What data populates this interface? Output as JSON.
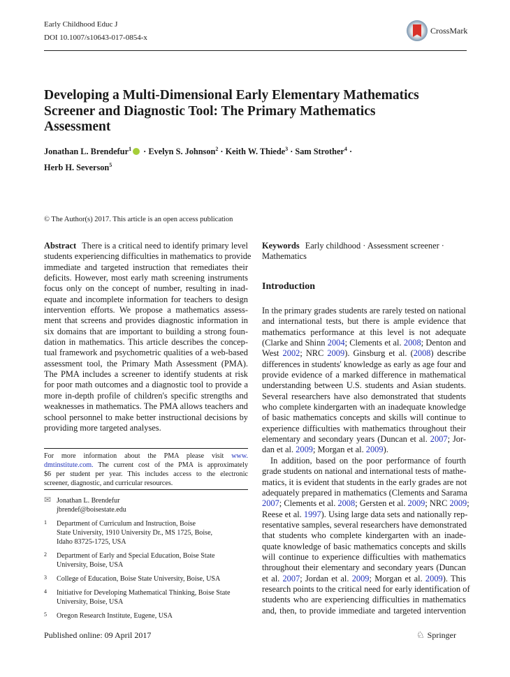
{
  "header": {
    "journal": "Early Childhood Educ J",
    "doi": "DOI 10.1007/s10643-017-0854-x",
    "crossmark": "CrossMark"
  },
  "title_lines": [
    "Developing a Multi-Dimensional Early Elementary Mathematics",
    "Screener and Diagnostic Tool: The Primary Mathematics",
    "Assessment"
  ],
  "authors": [
    {
      "name": "Jonathan L. Brendefur",
      "sup": "1"
    },
    {
      "name": "Evelyn S. Johnson",
      "sup": "2"
    },
    {
      "name": "Keith W. Thiede",
      "sup": "3"
    },
    {
      "name": "Sam Strother",
      "sup": "4"
    },
    {
      "name": "Herb H. Severson",
      "sup": "5"
    }
  ],
  "copyright": "© The Author(s) 2017. This article is an open access publication",
  "abstract": {
    "label": "Abstract",
    "lines": [
      "There is a critical need to identify primary level",
      "students experiencing difficulties in mathematics to provide",
      "immediate and targeted instruction that remediates their",
      "deficits. However, most early math screening instruments",
      "focus only on the concept of number, resulting in inad-",
      "equate and incomplete information for teachers to design",
      "intervention efforts. We propose a mathematics assess-",
      "ment that screens and provides diagnostic information in",
      "six domains that are important to building a strong foun-",
      "dation in mathematics. This article describes the concep-",
      "tual framework and psychometric qualities of a web-based",
      "assessment tool, the Primary Math Assessment (PMA).",
      "The PMA includes a screener to identify students at risk",
      "for poor math outcomes and a diagnostic tool to provide a",
      "more in-depth profile of children's specific strengths and",
      "weaknesses in mathematics. The PMA allows teachers and",
      "school personnel to make better instructional decisions by",
      "providing more targeted analyses."
    ]
  },
  "footnote": {
    "lines": [
      [
        "For more information about the PMA please visit ",
        {
          "link": "www."
        }
      ],
      [
        {
          "link": "dmtinstitute.com."
        },
        " The current cost of the PMA is approximately"
      ],
      [
        "$6 per student per year. This includes access to the electronic"
      ],
      [
        "screener, diagnostic, and curricular resources."
      ]
    ]
  },
  "correspondence": {
    "name": "Jonathan L. Brendefur",
    "email": "jbrendef@boisestate.edu"
  },
  "affiliations": [
    {
      "num": "1",
      "lines": [
        "Department of Curriculum and Instruction, Boise",
        "State University, 1910 University Dr., MS 1725, Boise,",
        "Idaho 83725-1725, USA"
      ]
    },
    {
      "num": "2",
      "lines": [
        "Department of Early and Special Education, Boise State",
        "University, Boise, USA"
      ]
    },
    {
      "num": "3",
      "lines": [
        "College of Education, Boise State University, Boise, USA"
      ]
    },
    {
      "num": "4",
      "lines": [
        "Initiative for Developing Mathematical Thinking, Boise State",
        "University, Boise, USA"
      ]
    },
    {
      "num": "5",
      "lines": [
        "Oregon Research Institute, Eugene, USA"
      ]
    }
  ],
  "published": "Published online: 09 April 2017",
  "keywords": {
    "label": "Keywords",
    "lines": [
      "Early childhood · Assessment screener ·",
      "Mathematics"
    ]
  },
  "introduction": {
    "heading": "Introduction",
    "lines": [
      [
        "In the primary grades students are rarely tested on national"
      ],
      [
        "and international tests, but there is ample evidence that"
      ],
      [
        "mathematics performance at this level is not adequate"
      ],
      [
        "(Clarke and Shinn ",
        {
          "link": "2004"
        },
        "; Clements et al. ",
        {
          "link": "2008"
        },
        "; Denton and"
      ],
      [
        "West ",
        {
          "link": "2002"
        },
        "; NRC ",
        {
          "link": "2009"
        },
        "). Ginsburg et al. (",
        {
          "link": "2008"
        },
        ") describe"
      ],
      [
        "differences in students' knowledge as early as age four and"
      ],
      [
        "provide evidence of a marked difference in mathematical"
      ],
      [
        "understanding between U.S. students and Asian students."
      ],
      [
        "Several researchers have also demonstrated that students"
      ],
      [
        "who complete kindergarten with an inadequate knowledge"
      ],
      [
        "of basic mathematics concepts and skills will continue to"
      ],
      [
        "experience difficulties with mathematics throughout their"
      ],
      [
        "elementary and secondary years (Duncan et al. ",
        {
          "link": "2007"
        },
        "; Jor-"
      ],
      [
        "dan et al. ",
        {
          "link": "2009"
        },
        "; Morgan et al. ",
        {
          "link": "2009"
        },
        ")."
      ],
      [
        "In addition, based on the poor performance of fourth"
      ],
      [
        "grade students on national and international tests of mathe-"
      ],
      [
        "matics, it is evident that students in the early grades are not"
      ],
      [
        "adequately prepared in mathematics (Clements and Sarama"
      ],
      [
        {
          "link": "2007"
        },
        "; Clements et al. ",
        {
          "link": "2008"
        },
        "; Gersten et al. ",
        {
          "link": "2009"
        },
        "; NRC ",
        {
          "link": "2009"
        },
        ";"
      ],
      [
        "Reese et al. ",
        {
          "link": "1997"
        },
        "). Using large data sets and nationally rep-"
      ],
      [
        "resentative samples, several researchers have demonstrated"
      ],
      [
        "that students who complete kindergarten with an inade-"
      ],
      [
        "quate knowledge of basic mathematics concepts and skills"
      ],
      [
        "will continue to experience difficulties with mathematics"
      ],
      [
        "throughout their elementary and secondary years (Duncan"
      ],
      [
        "et al. ",
        {
          "link": "2007"
        },
        "; Jordan et al. ",
        {
          "link": "2009"
        },
        "; Morgan et al. ",
        {
          "link": "2009"
        },
        "). This"
      ],
      [
        "research points to the critical need for early identification of"
      ],
      [
        "students who are experiencing difficulties in mathematics"
      ],
      [
        "and, then, to provide immediate and targeted intervention"
      ]
    ]
  },
  "footer": {
    "publisher": "Springer"
  },
  "colors": {
    "link": "#2233bb",
    "orcid": "#a6ce39",
    "crossmark_red": "#d8322a"
  }
}
